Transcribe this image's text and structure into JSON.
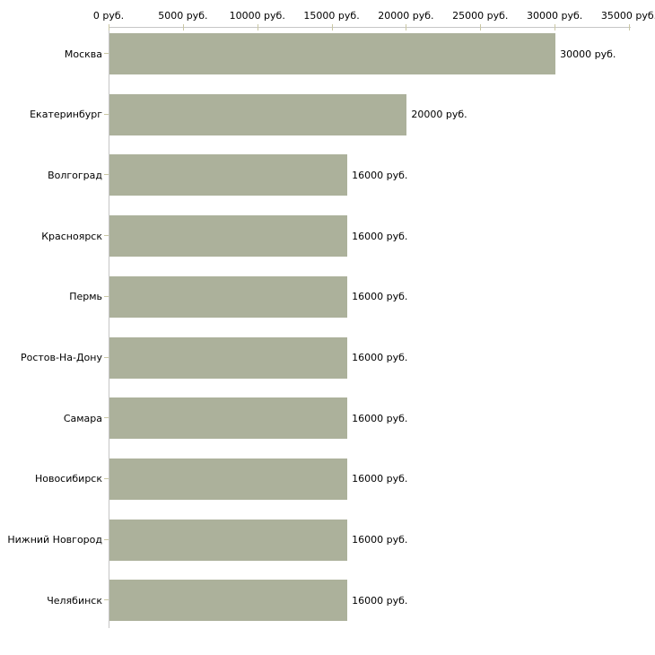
{
  "chart": {
    "background": "#ffffff",
    "bar_color": "#acb19b",
    "axis_line_color": "#c6c6c6",
    "tick_color": "#cac7a4",
    "text_color": "#000000"
  },
  "chart_data": {
    "type": "bar",
    "orientation": "horizontal",
    "title": "",
    "xlabel": "",
    "ylabel": "",
    "grid": false,
    "legend": false,
    "xlim": [
      0,
      35000
    ],
    "x_tick_values": [
      0,
      5000,
      10000,
      15000,
      20000,
      25000,
      30000,
      35000
    ],
    "x_tick_labels": [
      "0 руб.",
      "5000 руб.",
      "10000 руб.",
      "15000 руб.",
      "20000 руб.",
      "25000 руб.",
      "30000 руб.",
      "35000 руб."
    ],
    "categories": [
      "Москва",
      "Екатеринбург",
      "Волгоград",
      "Красноярск",
      "Пермь",
      "Ростов-На-Дону",
      "Самара",
      "Новосибирск",
      "Нижний Новгород",
      "Челябинск"
    ],
    "values": [
      30000,
      20000,
      16000,
      16000,
      16000,
      16000,
      16000,
      16000,
      16000,
      16000
    ],
    "value_labels": [
      "30000 руб.",
      "20000 руб.",
      "16000 руб.",
      "16000 руб.",
      "16000 руб.",
      "16000 руб.",
      "16000 руб.",
      "16000 руб.",
      "16000 руб.",
      "16000 руб."
    ]
  }
}
